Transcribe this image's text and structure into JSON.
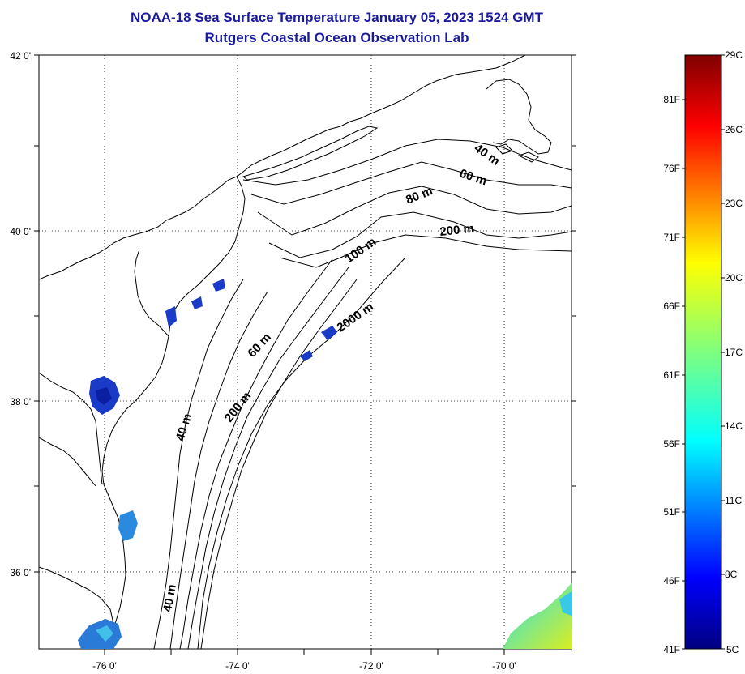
{
  "title_line1": "NOAA-18 Sea Surface Temperature January 05, 2023 1524 GMT",
  "title_line2": "Rutgers Coastal Ocean Observation Lab",
  "map": {
    "lat_labels": [
      "42 0'",
      "40 0'",
      "38 0'",
      "36 0'"
    ],
    "lon_labels": [
      "-76 0'",
      "-74 0'",
      "-72 0'",
      "-70 0'"
    ],
    "contour_labels": [
      "40 m",
      "60 m",
      "80 m",
      "200 m",
      "100 m",
      "2000 m",
      "60 m",
      "200 m",
      "40 m",
      "40 m"
    ],
    "colors": {
      "land": "#ffffff",
      "coast": "#000000",
      "grid": "#000000"
    }
  },
  "colorbar": {
    "celsius_labels": [
      "29C",
      "26C",
      "23C",
      "20C",
      "17C",
      "14C",
      "11C",
      "8C",
      "5C"
    ],
    "fahrenheit_labels": [
      "81F",
      "76F",
      "71F",
      "66F",
      "61F",
      "56F",
      "51F",
      "46F",
      "41F"
    ],
    "range_c": [
      5,
      29
    ],
    "colormap": "jet"
  }
}
